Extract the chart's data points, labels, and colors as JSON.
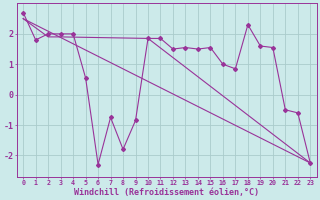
{
  "bg_color": "#cceaea",
  "grid_color": "#aacccc",
  "line_color": "#993399",
  "xlabel": "Windchill (Refroidissement éolien,°C)",
  "xlabel_fontsize": 6.0,
  "xtick_fontsize": 4.8,
  "ytick_fontsize": 6.0,
  "ylim": [
    -2.7,
    3.0
  ],
  "yticks": [
    -2,
    -1,
    0,
    1,
    2
  ],
  "xlim": [
    -0.5,
    23.5
  ],
  "line1_x": [
    0,
    1,
    2,
    3,
    4,
    5,
    6,
    7,
    8,
    9,
    10,
    11,
    12,
    13,
    14,
    15,
    16,
    17,
    18,
    19,
    20,
    21,
    22,
    23
  ],
  "line1_y": [
    2.7,
    1.8,
    2.0,
    2.0,
    2.0,
    0.55,
    -2.3,
    -0.75,
    -1.8,
    -0.85,
    1.85,
    1.85,
    1.5,
    1.55,
    1.5,
    1.55,
    1.0,
    0.85,
    2.3,
    1.6,
    1.55,
    -0.5,
    -0.6,
    -2.25
  ],
  "line2_x": [
    0,
    23
  ],
  "line2_y": [
    2.5,
    -2.25
  ],
  "line3_x": [
    0,
    2,
    3,
    10,
    23
  ],
  "line3_y": [
    2.5,
    1.9,
    1.9,
    1.85,
    -2.25
  ],
  "marker_style": "D",
  "marker_size": 2.0,
  "line_width": 0.8
}
